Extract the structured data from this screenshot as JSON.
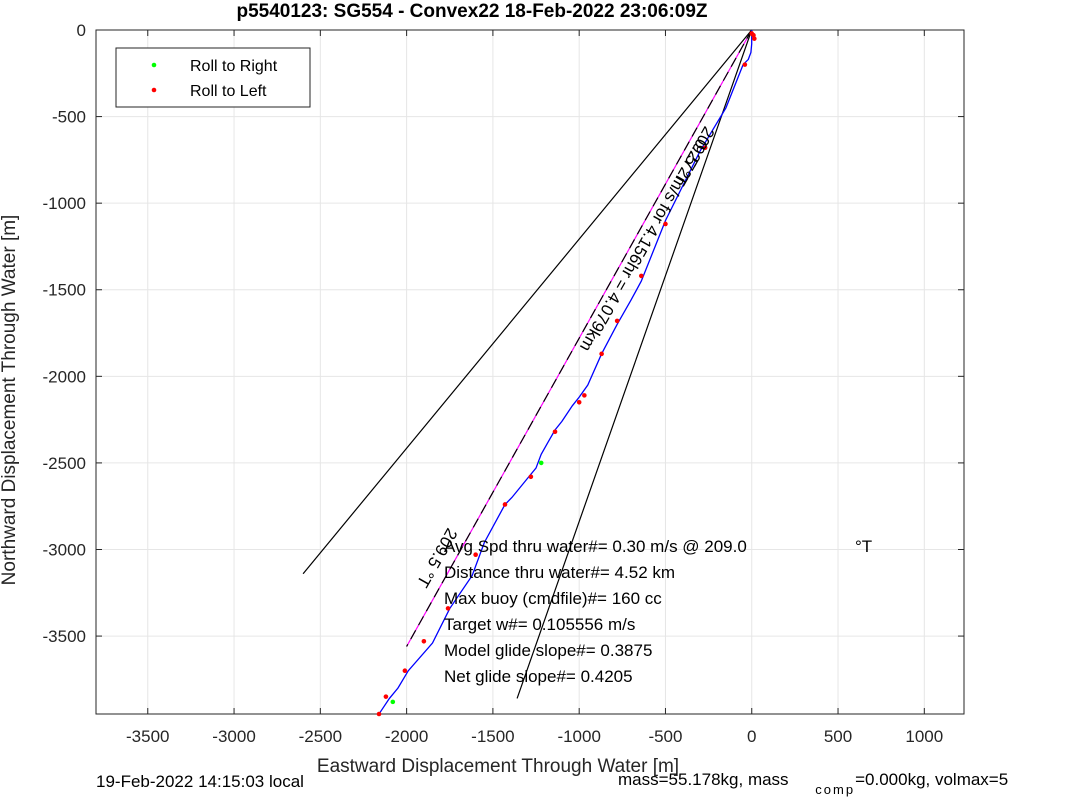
{
  "chart_data": {
    "type": "line",
    "title": "p5540123: SG554 - Convex22 18-Feb-2022 23:06:09Z",
    "xlabel": "Eastward Displacement Through Water [m]",
    "ylabel": "Northward Displacement Through Water [m]",
    "xlim": [
      -3800,
      1230
    ],
    "ylim": [
      -3950,
      0
    ],
    "x_ticks": [
      -3500,
      -3000,
      -2500,
      -2000,
      -1500,
      -1000,
      -500,
      0,
      500,
      1000
    ],
    "y_ticks": [
      0,
      -500,
      -1000,
      -1500,
      -2000,
      -2500,
      -3000,
      -3500
    ],
    "grid": true,
    "legend_position": "top-left",
    "legend": [
      {
        "label": "Roll to Right",
        "color": "#00ff00"
      },
      {
        "label": "Roll to Left",
        "color": "#ff0000"
      }
    ],
    "track": {
      "color": "#0000ff",
      "x": [
        0,
        0,
        -5,
        -20,
        -50,
        -150,
        -300,
        -500,
        -640,
        -700,
        -780,
        -870,
        -950,
        -1000,
        -1040,
        -1100,
        -1140,
        -1180,
        -1220,
        -1250,
        -1300,
        -1390,
        -1430,
        -1550,
        -1620,
        -1750,
        -1850,
        -1990,
        -2050,
        -2100,
        -2160
      ],
      "y": [
        0,
        -80,
        -130,
        -170,
        -200,
        -450,
        -700,
        -1100,
        -1450,
        -1560,
        -1700,
        -1870,
        -2050,
        -2120,
        -2170,
        -2260,
        -2310,
        -2380,
        -2450,
        -2530,
        -2590,
        -2700,
        -2740,
        -2960,
        -3150,
        -3340,
        -3540,
        -3700,
        -3800,
        -3860,
        -3950
      ]
    },
    "roll_left_points": {
      "color": "#ff0000",
      "x": [
        0,
        10,
        15,
        -40,
        -270,
        -500,
        -640,
        -780,
        -870,
        -970,
        -1000,
        -1140,
        -1280,
        -1430,
        -1600,
        -1760,
        -1900,
        -2010,
        -2120,
        -2160
      ],
      "y": [
        -20,
        -30,
        -50,
        -200,
        -680,
        -1120,
        -1420,
        -1680,
        -1870,
        -2110,
        -2150,
        -2320,
        -2580,
        -2740,
        -3030,
        -3340,
        -3530,
        -3700,
        -3850,
        -3950
      ]
    },
    "roll_right_points": {
      "color": "#00ff00",
      "x": [
        -1220,
        -2080
      ],
      "y": [
        -2500,
        -3880
      ]
    },
    "reference_lines": [
      {
        "color": "#ff00ff",
        "x": [
          0,
          -2000
        ],
        "y": [
          0,
          -3560
        ]
      },
      {
        "color": "#000000",
        "x": [
          0,
          -2600
        ],
        "y": [
          0,
          -3140
        ]
      },
      {
        "color": "#000000",
        "x": [
          0,
          -1360
        ],
        "y": [
          0,
          -3860
        ]
      },
      {
        "color": "#000000",
        "dashed": true,
        "x": [
          0,
          -2000
        ],
        "y": [
          0,
          -3560
        ]
      }
    ],
    "annotations": [
      {
        "text": "209.5 °T",
        "x": -270,
        "y": -550,
        "rotate": 119.5
      },
      {
        "text": "0.272m/s for 4.156hr = 4.079km",
        "x": -310,
        "y": -620,
        "rotate": 119.5
      },
      {
        "text": "209.5 °T",
        "x": -1760,
        "y": -2870,
        "rotate": 119.5
      }
    ],
    "stats_lines": [
      "Avg Spd thru water#=  0.30 m/s @ 209.0",
      "Distance thru water#=  4.52 km",
      "Max buoy (cmdfile)#= 160 cc",
      "Target w#= 0.105556 m/s",
      "Model glide slope#= 0.3875",
      "Net glide slope#= 0.4205"
    ],
    "stats_unit": "°T"
  },
  "footer": {
    "local_time": "19-Feb-2022 14:15:03 local",
    "mass_prefix": "mass=55.178kg, mass",
    "mass_sub": "comp",
    "mass_suffix": "=0.000kg, volmax=5"
  }
}
